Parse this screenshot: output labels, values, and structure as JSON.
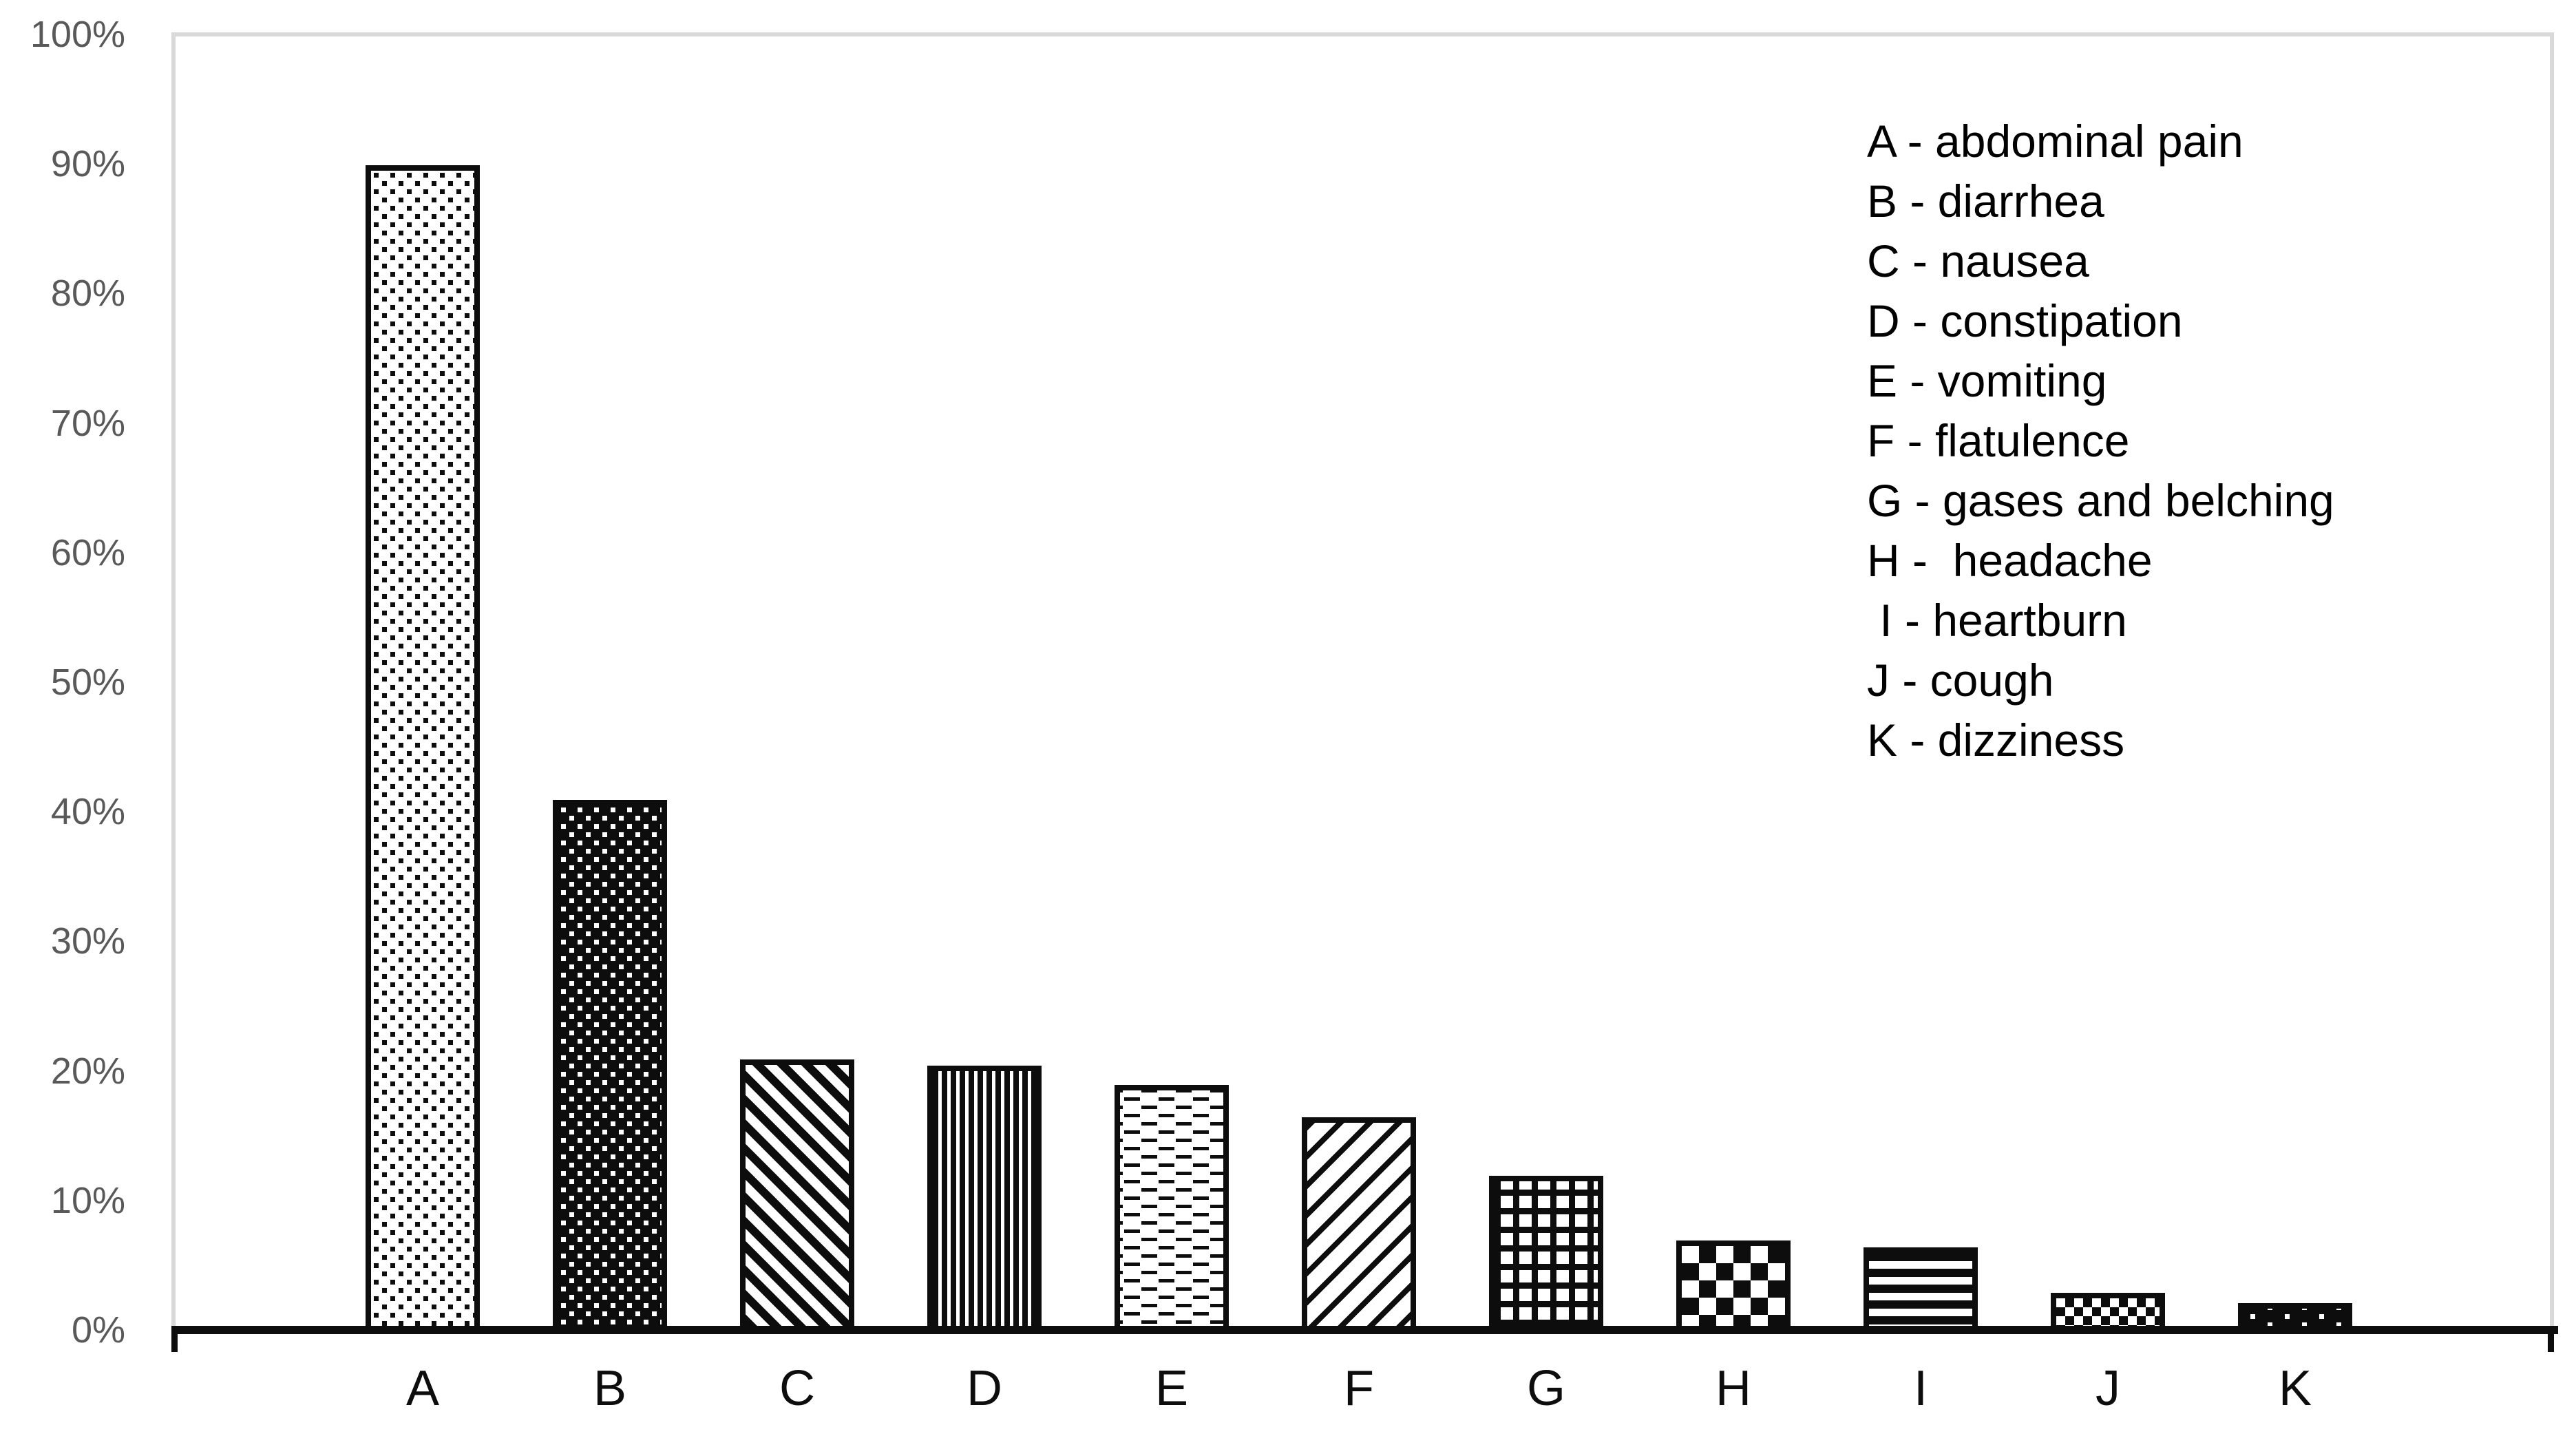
{
  "chart_data": {
    "type": "bar",
    "title": "",
    "categories": [
      "A",
      "B",
      "C",
      "D",
      "E",
      "F",
      "G",
      "H",
      "I",
      "J",
      "K"
    ],
    "values": [
      90,
      41,
      21,
      20.5,
      19,
      16.5,
      12,
      7,
      6.5,
      3,
      2.2
    ],
    "unit": "%",
    "xlabel": "",
    "ylabel": "",
    "ylim": [
      0,
      100
    ],
    "grid": "none",
    "legend_position": "top-right",
    "y_axis": {
      "tick_labels": [
        "0%",
        "10%",
        "20%",
        "30%",
        "40%",
        "50%",
        "60%",
        "70%",
        "80%",
        "90%",
        "100%"
      ]
    },
    "bar_patterns": [
      "sparse-dots",
      "dense-dots-inverse",
      "diagonal-down",
      "vertical-stripes",
      "offset-dashes",
      "diagonal-up",
      "grid",
      "checker-large",
      "horizontal-stripes",
      "checker-small",
      "solid-sparse-white-dots"
    ]
  },
  "legend": {
    "items": [
      "A - abdominal pain",
      "B - diarrhea",
      "C - nausea",
      "D - constipation",
      "E - vomiting",
      "F - flatulence",
      "G - gases and belching",
      "H -  headache",
      " I - heartburn",
      "J - cough",
      "K - dizziness"
    ]
  },
  "colors": {
    "ink": "#0d0d0d",
    "axis_labels": "#595959",
    "plot_border": "#d9d9d9",
    "background": "#ffffff"
  }
}
